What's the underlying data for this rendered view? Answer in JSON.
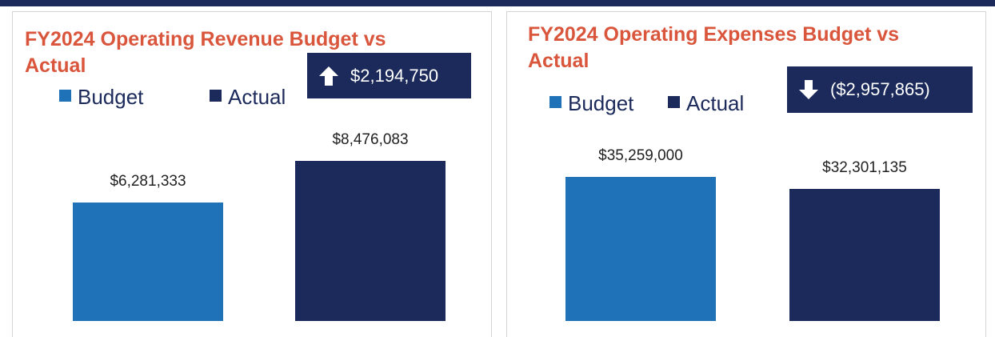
{
  "chart_data": [
    {
      "type": "bar",
      "title": "FY2024 Operating Revenue Budget vs Actual",
      "annotation": "$2,194,750",
      "series": [
        {
          "name": "Budget",
          "color": "#1f72b8",
          "values": [
            6281333
          ],
          "value_labels": [
            "$6,281,333"
          ]
        },
        {
          "name": "Actual",
          "color": "#1b2a5a",
          "values": [
            8476083
          ],
          "value_labels": [
            "$8,476,083"
          ]
        }
      ]
    },
    {
      "type": "bar",
      "title": "FY2024 Operating Expenses Budget vs Actual",
      "annotation": "($2,957,865)",
      "series": [
        {
          "name": "Budget",
          "color": "#1f72b8",
          "values": [
            35259000
          ],
          "value_labels": [
            "$35,259,000"
          ]
        },
        {
          "name": "Actual",
          "color": "#1b2a5a",
          "values": [
            32301135
          ],
          "value_labels": [
            "$32,301,135"
          ]
        }
      ]
    }
  ]
}
